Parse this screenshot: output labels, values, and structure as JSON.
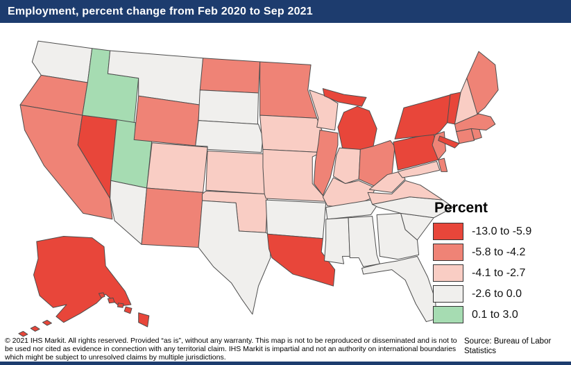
{
  "header": {
    "title": "Employment, percent change from Feb 2020 to Sep 2021"
  },
  "legend": {
    "title": "Percent",
    "categories": [
      {
        "label": "-13.0 to -5.9",
        "color": "#e8463a"
      },
      {
        "label": "-5.8 to -4.2",
        "color": "#ef8376"
      },
      {
        "label": "-4.1 to -2.7",
        "color": "#f9cdc4"
      },
      {
        "label": "-2.6 to 0.0",
        "color": "#f0efed"
      },
      {
        "label": "0.1 to 3.0",
        "color": "#a6dcb2"
      }
    ]
  },
  "map_data": {
    "type": "choropleth",
    "region": "United States",
    "metric": "Employment, percent change from Feb 2020 to Sep 2021",
    "states": {
      "WA": {
        "name": "Washington",
        "category": 3
      },
      "OR": {
        "name": "Oregon",
        "category": 1
      },
      "CA": {
        "name": "California",
        "category": 1
      },
      "NV": {
        "name": "Nevada",
        "category": 0
      },
      "ID": {
        "name": "Idaho",
        "category": 4
      },
      "UT": {
        "name": "Utah",
        "category": 4
      },
      "AZ": {
        "name": "Arizona",
        "category": 3
      },
      "MT": {
        "name": "Montana",
        "category": 3
      },
      "WY": {
        "name": "Wyoming",
        "category": 1
      },
      "CO": {
        "name": "Colorado",
        "category": 2
      },
      "NM": {
        "name": "New Mexico",
        "category": 1
      },
      "ND": {
        "name": "North Dakota",
        "category": 1
      },
      "SD": {
        "name": "South Dakota",
        "category": 3
      },
      "NE": {
        "name": "Nebraska",
        "category": 3
      },
      "KS": {
        "name": "Kansas",
        "category": 2
      },
      "OK": {
        "name": "Oklahoma",
        "category": 2
      },
      "TX": {
        "name": "Texas",
        "category": 3
      },
      "MN": {
        "name": "Minnesota",
        "category": 1
      },
      "IA": {
        "name": "Iowa",
        "category": 2
      },
      "MO": {
        "name": "Missouri",
        "category": 2
      },
      "AR": {
        "name": "Arkansas",
        "category": 3
      },
      "LA": {
        "name": "Louisiana",
        "category": 0
      },
      "WI": {
        "name": "Wisconsin",
        "category": 2
      },
      "IL": {
        "name": "Illinois",
        "category": 1
      },
      "MI": {
        "name": "Michigan",
        "category": 0
      },
      "IN": {
        "name": "Indiana",
        "category": 2
      },
      "OH": {
        "name": "Ohio",
        "category": 1
      },
      "KY": {
        "name": "Kentucky",
        "category": 2
      },
      "TN": {
        "name": "Tennessee",
        "category": 3
      },
      "MS": {
        "name": "Mississippi",
        "category": 3
      },
      "AL": {
        "name": "Alabama",
        "category": 3
      },
      "GA": {
        "name": "Georgia",
        "category": 3
      },
      "FL": {
        "name": "Florida",
        "category": 3
      },
      "SC": {
        "name": "South Carolina",
        "category": 3
      },
      "NC": {
        "name": "North Carolina",
        "category": 3
      },
      "VA": {
        "name": "Virginia",
        "category": 2
      },
      "WV": {
        "name": "West Virginia",
        "category": 2
      },
      "MD": {
        "name": "Maryland",
        "category": 2
      },
      "DE": {
        "name": "Delaware",
        "category": 1
      },
      "PA": {
        "name": "Pennsylvania",
        "category": 0
      },
      "NJ": {
        "name": "New Jersey",
        "category": 1
      },
      "NY": {
        "name": "New York",
        "category": 0
      },
      "CT": {
        "name": "Connecticut",
        "category": 1
      },
      "RI": {
        "name": "Rhode Island",
        "category": 1
      },
      "MA": {
        "name": "Massachusetts",
        "category": 1
      },
      "VT": {
        "name": "Vermont",
        "category": 0
      },
      "NH": {
        "name": "New Hampshire",
        "category": 2
      },
      "ME": {
        "name": "Maine",
        "category": 1
      },
      "AK": {
        "name": "Alaska",
        "category": 0
      },
      "HI": {
        "name": "Hawaii",
        "category": 0
      }
    }
  },
  "footer": {
    "disclaimer": "© 2021 IHS Markit. All rights reserved. Provided “as is”, without any warranty. This map is not to be reproduced or disseminated and is not to be used nor cited as evidence in connection with any territorial claim. IHS Markit is impartial and not an authority on international boundaries which might be subject to unresolved claims by multiple jurisdictions.",
    "source": "Source: Bureau of Labor Statistics"
  },
  "colors": {
    "header_bg": "#1d3c6e",
    "state_border": "#4d4d4d",
    "page_bg": "#ffffff"
  }
}
